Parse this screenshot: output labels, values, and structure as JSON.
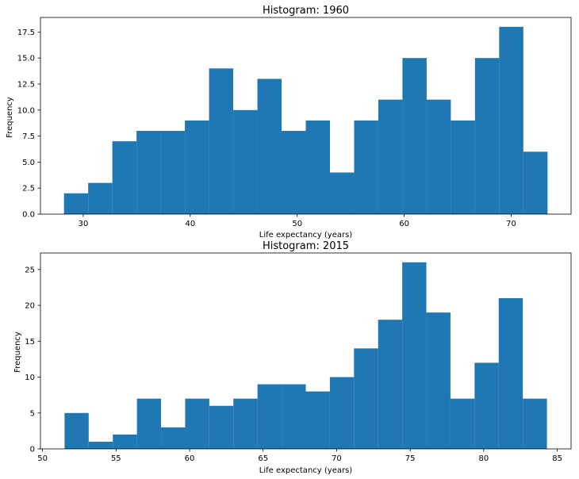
{
  "chart_data": [
    {
      "type": "bar",
      "title": "Histogram: 1960",
      "xlabel": "Life expectancy (years)",
      "ylabel": "Frequency",
      "bin_edges": [
        28.2,
        30.46,
        32.72,
        34.98,
        37.24,
        39.5,
        41.76,
        44.02,
        46.28,
        48.54,
        50.8,
        53.06,
        55.32,
        57.58,
        59.84,
        62.1,
        64.36,
        66.62,
        68.88,
        71.14,
        73.4
      ],
      "values": [
        2,
        3,
        7,
        8,
        8,
        9,
        14,
        10,
        13,
        8,
        9,
        4,
        9,
        11,
        15,
        11,
        9,
        15,
        18,
        6
      ],
      "xlim": [
        26.0,
        75.6
      ],
      "ylim": [
        0,
        18.9
      ],
      "x_ticks": [
        30,
        40,
        50,
        60,
        70
      ],
      "y_ticks": [
        "0.0",
        "2.5",
        "5.0",
        "7.5",
        "10.0",
        "12.5",
        "15.0",
        "17.5"
      ],
      "color": "#1f77b4",
      "grid": false
    },
    {
      "type": "bar",
      "title": "Histogram: 2015",
      "xlabel": "Life expectancy (years)",
      "ylabel": "Frequency",
      "bin_edges": [
        51.5,
        53.14,
        54.78,
        56.42,
        58.06,
        59.7,
        61.34,
        62.98,
        64.62,
        66.26,
        67.9,
        69.54,
        71.18,
        72.82,
        74.46,
        76.1,
        77.74,
        79.38,
        81.02,
        82.66,
        84.3
      ],
      "values": [
        5,
        1,
        2,
        7,
        3,
        7,
        6,
        7,
        9,
        9,
        8,
        10,
        14,
        18,
        26,
        19,
        7,
        12,
        21,
        7
      ],
      "xlim": [
        49.86,
        85.94
      ],
      "ylim": [
        0,
        27.3
      ],
      "x_ticks": [
        50,
        55,
        60,
        65,
        70,
        75,
        80,
        85
      ],
      "y_ticks": [
        "0",
        "5",
        "10",
        "15",
        "20",
        "25"
      ],
      "color": "#1f77b4",
      "grid": false
    }
  ]
}
